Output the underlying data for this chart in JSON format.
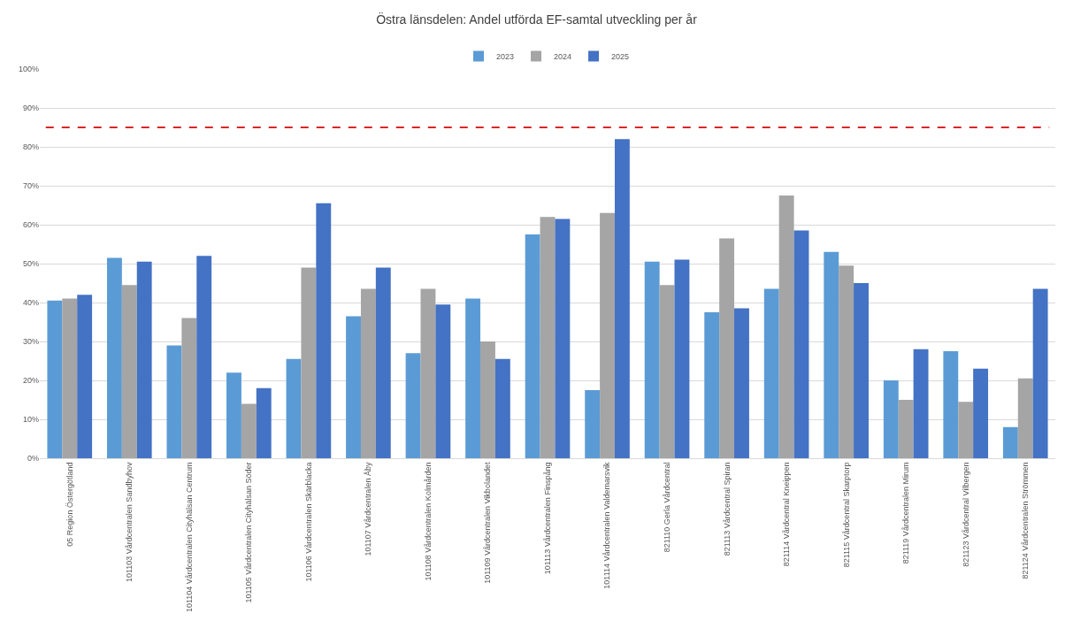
{
  "chart_data": {
    "type": "bar",
    "title": "Östra länsdelen: Andel utförda EF-samtal utveckling per år",
    "categories": [
      "05 Region Östergötland",
      "101103 Vårdcentralen Sandbyhov",
      "101104 Vårdcentralen Cityhälsan Centrum",
      "101105 Vårdcentralen Cityhälsan Söder",
      "101106 Vårdcentralen Skärblacka",
      "101107 Vårdcentralen Åby",
      "101108 Vårdcentralen Kolmården",
      "101109 Vårdcentralen Vikbolandet",
      "101113 Vårdcentralen Finspång",
      "101114 Vårdcentralen Valdemarsvik",
      "821110 Gerla Vårdcentral",
      "821113 Vårdcentral Spiran",
      "821114 Vårdcentral Kneippen",
      "821115 Vårdcentral Skarptorp",
      "821119 Vårdcentralen Mirum",
      "821123 Vårdcentral Vilbergen",
      "821124 Vårdcentralen Strömmen"
    ],
    "series": [
      {
        "name": "2023",
        "color": "#5b9bd5",
        "values": [
          40.5,
          51.5,
          29,
          22,
          25.5,
          36.5,
          27,
          41,
          57.5,
          17.5,
          50.5,
          37.5,
          43.5,
          53,
          20,
          27.5,
          8
        ]
      },
      {
        "name": "2024",
        "color": "#a5a5a5",
        "values": [
          41,
          44.5,
          36,
          14,
          49,
          43.5,
          43.5,
          30,
          62,
          63,
          44.5,
          56.5,
          67.5,
          49.5,
          15,
          14.5,
          20.5
        ]
      },
      {
        "name": "2025",
        "color": "#4472c4",
        "values": [
          42,
          50.5,
          52,
          18,
          65.5,
          49,
          39.5,
          25.5,
          61.5,
          82,
          51,
          38.5,
          58.5,
          45,
          28,
          23,
          43.5
        ]
      }
    ],
    "ylim": [
      0,
      100
    ],
    "yticks": [
      {
        "value": 0,
        "label": "0%"
      },
      {
        "value": 10,
        "label": "10%"
      },
      {
        "value": 20,
        "label": "20%"
      },
      {
        "value": 30,
        "label": "30%"
      },
      {
        "value": 40,
        "label": "40%"
      },
      {
        "value": 50,
        "label": "50%"
      },
      {
        "value": 60,
        "label": "60%"
      },
      {
        "value": 70,
        "label": "70%"
      },
      {
        "value": 80,
        "label": "80%"
      },
      {
        "value": 90,
        "label": "90%"
      },
      {
        "value": 100,
        "label": "100%"
      }
    ],
    "grid": "y",
    "legend": "top",
    "ref_lines": [
      {
        "axis": "y",
        "value": 85,
        "color": "#d62728",
        "line_style": "dashed"
      }
    ]
  }
}
